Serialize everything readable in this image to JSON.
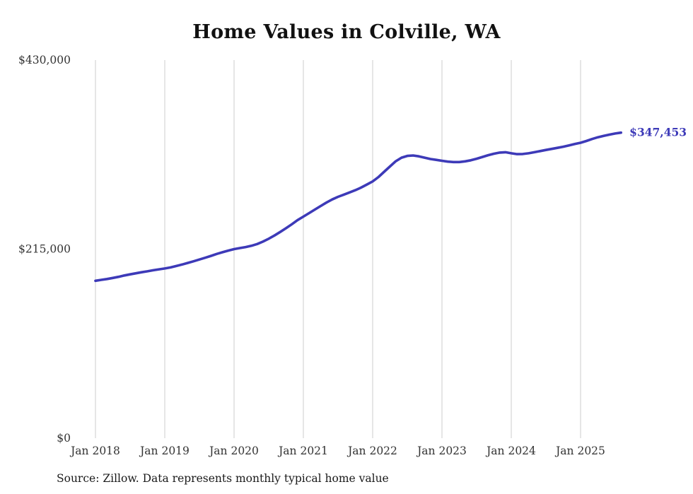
{
  "chart": {
    "title": "Home Values in Colville, WA",
    "source": "Source: Zillow. Data represents monthly typical home value"
  },
  "chart_data": {
    "type": "line",
    "title": "Home Values in Colville, WA",
    "source": "Source: Zillow. Data represents monthly typical home value",
    "end_label": "$347,453",
    "end_value": 347453,
    "ylim": [
      0,
      430000
    ],
    "grid": "vertical-only",
    "legend": "none",
    "colors": {
      "line": "#3d3ab8",
      "end_label": "#3d3ab8",
      "gridline": "#cccccc",
      "tick_text": "#333333"
    },
    "y_ticks": [
      {
        "value": 0,
        "label": "$0"
      },
      {
        "value": 215000,
        "label": "$215,000"
      },
      {
        "value": 430000,
        "label": "$430,000"
      }
    ],
    "x_ticks": [
      {
        "month_index": 0,
        "label": "Jan 2018"
      },
      {
        "month_index": 12,
        "label": "Jan 2019"
      },
      {
        "month_index": 24,
        "label": "Jan 2020"
      },
      {
        "month_index": 36,
        "label": "Jan 2021"
      },
      {
        "month_index": 48,
        "label": "Jan 2022"
      },
      {
        "month_index": 60,
        "label": "Jan 2023"
      },
      {
        "month_index": 72,
        "label": "Jan 2024"
      },
      {
        "month_index": 84,
        "label": "Jan 2025"
      }
    ],
    "series": [
      {
        "name": "Typical home value",
        "start_month": "2018-01",
        "values": [
          179000,
          180000,
          181000,
          182200,
          183500,
          185000,
          186300,
          187500,
          188700,
          189800,
          191000,
          192000,
          193000,
          194200,
          195800,
          197500,
          199300,
          201200,
          203200,
          205200,
          207300,
          209500,
          211500,
          213300,
          215000,
          216200,
          217300,
          218800,
          220800,
          223500,
          226800,
          230500,
          234500,
          238800,
          243300,
          248000,
          252000,
          256000,
          260000,
          264000,
          268000,
          271500,
          274500,
          277000,
          279500,
          282000,
          285000,
          288500,
          292000,
          297000,
          303000,
          309000,
          315000,
          319000,
          321000,
          321500,
          320500,
          319000,
          317500,
          316500,
          315500,
          314500,
          314000,
          314000,
          314800,
          316000,
          317800,
          319800,
          321800,
          323500,
          324800,
          325200,
          324000,
          323000,
          323200,
          324000,
          325200,
          326500,
          327800,
          329000,
          330200,
          331500,
          333000,
          334500,
          336000,
          338000,
          340200,
          342200,
          343800,
          345200,
          346500,
          347453
        ]
      }
    ]
  }
}
